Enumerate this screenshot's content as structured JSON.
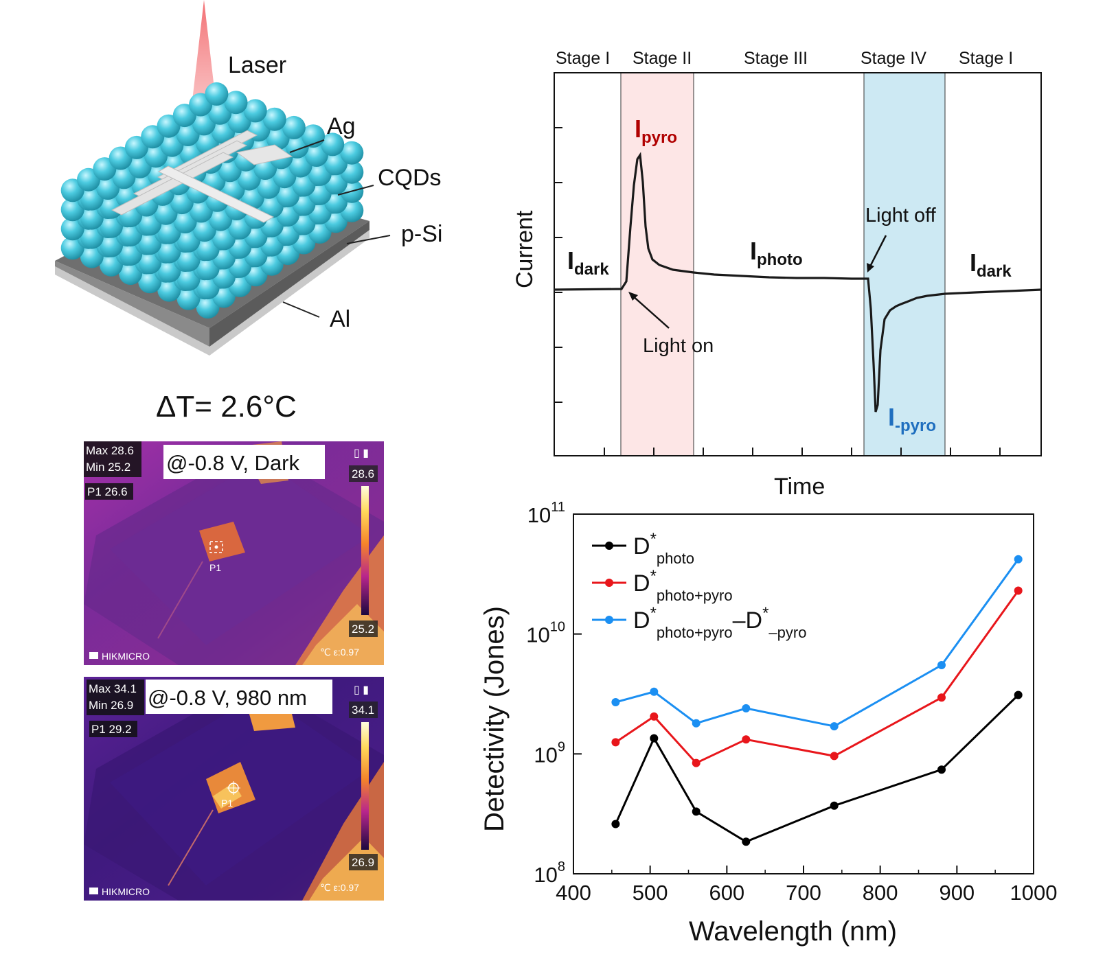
{
  "schematic": {
    "laser_label": "Laser",
    "layers": [
      "Ag",
      "CQDs",
      "p-Si",
      "Al"
    ]
  },
  "thermal": {
    "delta_t_label": "ΔT= 2.6°C",
    "images": [
      {
        "condition": "@-0.8 V, Dark",
        "max_label": "Max 28.6",
        "min_label": "Min  25.2",
        "point_label": "P1 26.6",
        "scale_top": "28.6",
        "scale_bottom": "25.2",
        "marker": "P1",
        "brand": "HIKMICRO",
        "emissivity": "℃  ε:0.97"
      },
      {
        "condition": "@-0.8 V, 980 nm",
        "max_label": "Max 34.1",
        "min_label": "Min  26.9",
        "point_label": "P1 29.2",
        "scale_top": "34.1",
        "scale_bottom": "26.9",
        "marker": "P1",
        "brand": "HIKMICRO",
        "emissivity": "℃  ε:0.97"
      }
    ]
  },
  "current_plot": {
    "ylabel": "Current",
    "xlabel": "Time",
    "stages": [
      "Stage I",
      "Stage II",
      "Stage III",
      "Stage IV",
      "Stage I"
    ],
    "annotations": {
      "i_dark_left": "I",
      "i_dark_left_sub": "dark",
      "i_pyro": "I",
      "i_pyro_sub": "pyro",
      "i_photo": "I",
      "i_photo_sub": "photo",
      "i_neg_pyro": "I",
      "i_neg_pyro_sub": "-pyro",
      "i_dark_right": "I",
      "i_dark_right_sub": "dark",
      "light_on": "Light on",
      "light_off": "Light off"
    },
    "colors": {
      "stage2": "#fde6e6",
      "stage4": "#cde9f3",
      "pyro": "#b00000",
      "neg_pyro": "#1f6fbf"
    }
  },
  "chart_data": {
    "type": "line",
    "xlabel": "Wavelength (nm)",
    "ylabel": "Detectivity (Jones)",
    "xlim": [
      400,
      1000
    ],
    "ylim": [
      100000000.0,
      100000000000.0
    ],
    "yscale": "log",
    "xticks": [
      "400",
      "500",
      "600",
      "700",
      "800",
      "900",
      "1000"
    ],
    "yticks": [
      {
        "base": "10",
        "exp": "8",
        "value": 100000000.0
      },
      {
        "base": "10",
        "exp": "9",
        "value": 1000000000.0
      },
      {
        "base": "10",
        "exp": "10",
        "value": 10000000000.0
      },
      {
        "base": "10",
        "exp": "11",
        "value": 100000000000.0
      }
    ],
    "legend_position": "top-left",
    "x": [
      455,
      505,
      560,
      625,
      740,
      880,
      980
    ],
    "series": [
      {
        "legend": {
          "main": "D",
          "sup": "*",
          "sub": "photo"
        },
        "color": "#000000",
        "values": [
          260000000.0,
          1350000000.0,
          330000000.0,
          185000000.0,
          370000000.0,
          740000000.0,
          3100000000.0
        ]
      },
      {
        "legend": {
          "main": "D",
          "sup": "*",
          "sub": "photo+pyro"
        },
        "color": "#e8161b",
        "values": [
          1250000000.0,
          2050000000.0,
          840000000.0,
          1320000000.0,
          960000000.0,
          2950000000.0,
          23000000000.0
        ]
      },
      {
        "legend": {
          "main": "D",
          "sup": "*",
          "sub": "photo+pyro",
          "minus": "–D",
          "sup2": "*",
          "sub2": "–pyro"
        },
        "color": "#1b8ff2",
        "values": [
          2700000000.0,
          3300000000.0,
          1800000000.0,
          2400000000.0,
          1700000000.0,
          5500000000.0,
          42000000000.0
        ]
      }
    ]
  }
}
